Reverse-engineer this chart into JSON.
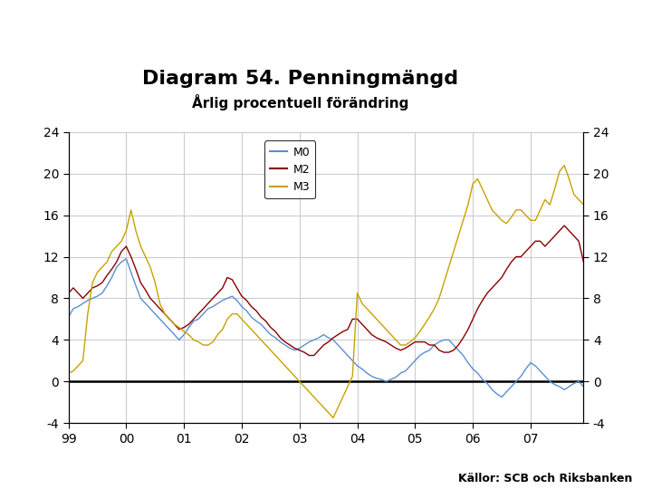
{
  "title": "Diagram 54. Penningmängd",
  "subtitle": "Årlig procentuell förändring",
  "source": "Källor: SCB och Riksbanken",
  "ylim": [
    -4,
    24
  ],
  "yticks": [
    -4,
    0,
    4,
    8,
    12,
    16,
    20,
    24
  ],
  "xlim": [
    0,
    107
  ],
  "xtick_positions": [
    0,
    12,
    24,
    36,
    48,
    60,
    72,
    84,
    96
  ],
  "xtick_labels": [
    "99",
    "00",
    "01",
    "02",
    "03",
    "04",
    "05",
    "06",
    "07"
  ],
  "colors": {
    "M0": "#5b8fce",
    "M2": "#8b0000",
    "M3": "#c8a200"
  },
  "grid_color": "#cccccc",
  "zero_line_color": "#000000",
  "background_color": "#ffffff",
  "footer_color": "#1a3c7a",
  "title_fontsize": 16,
  "subtitle_fontsize": 11,
  "tick_fontsize": 10,
  "logo_color": "#1a3c7a",
  "M0": [
    6.2,
    7.0,
    7.2,
    7.5,
    7.8,
    8.0,
    8.2,
    8.5,
    9.2,
    10.0,
    11.0,
    11.5,
    11.8,
    10.5,
    9.2,
    8.0,
    7.5,
    7.0,
    6.5,
    6.0,
    5.5,
    5.0,
    4.5,
    4.0,
    4.5,
    5.2,
    5.8,
    6.0,
    6.5,
    7.0,
    7.2,
    7.5,
    7.8,
    8.0,
    8.2,
    7.8,
    7.2,
    6.8,
    6.2,
    5.8,
    5.5,
    5.0,
    4.5,
    4.2,
    3.8,
    3.5,
    3.2,
    3.0,
    3.2,
    3.5,
    3.8,
    4.0,
    4.2,
    4.5,
    4.2,
    4.0,
    3.5,
    3.0,
    2.5,
    2.0,
    1.5,
    1.2,
    0.8,
    0.5,
    0.3,
    0.2,
    0.0,
    0.2,
    0.4,
    0.8,
    1.0,
    1.5,
    2.0,
    2.5,
    2.8,
    3.0,
    3.5,
    3.8,
    4.0,
    4.0,
    3.5,
    3.0,
    2.5,
    1.8,
    1.2,
    0.8,
    0.2,
    -0.2,
    -0.8,
    -1.2,
    -1.5,
    -1.0,
    -0.5,
    0.0,
    0.5,
    1.2,
    1.8,
    1.5,
    1.0,
    0.5,
    0.0,
    -0.3,
    -0.5,
    -0.8,
    -0.5,
    -0.2,
    0.0,
    -0.5
  ],
  "M2": [
    8.5,
    9.0,
    8.5,
    8.0,
    8.5,
    9.0,
    9.2,
    9.5,
    10.2,
    10.8,
    11.5,
    12.5,
    13.0,
    12.0,
    10.8,
    9.5,
    8.8,
    8.0,
    7.5,
    7.0,
    6.5,
    6.0,
    5.5,
    5.0,
    5.2,
    5.5,
    6.0,
    6.5,
    7.0,
    7.5,
    8.0,
    8.5,
    9.0,
    10.0,
    9.8,
    9.0,
    8.2,
    7.8,
    7.2,
    6.8,
    6.2,
    5.8,
    5.2,
    4.8,
    4.2,
    3.8,
    3.5,
    3.2,
    3.0,
    2.8,
    2.5,
    2.5,
    3.0,
    3.5,
    3.8,
    4.2,
    4.5,
    4.8,
    5.0,
    6.0,
    6.0,
    5.5,
    5.0,
    4.5,
    4.2,
    4.0,
    3.8,
    3.5,
    3.2,
    3.0,
    3.2,
    3.5,
    3.8,
    3.8,
    3.8,
    3.5,
    3.5,
    3.0,
    2.8,
    2.8,
    3.0,
    3.5,
    4.2,
    5.0,
    6.0,
    7.0,
    7.8,
    8.5,
    9.0,
    9.5,
    10.0,
    10.8,
    11.5,
    12.0,
    12.0,
    12.5,
    13.0,
    13.5,
    13.5,
    13.0,
    13.5,
    14.0,
    14.5,
    15.0,
    14.5,
    14.0,
    13.5,
    11.5
  ],
  "M3": [
    0.8,
    1.0,
    1.5,
    2.0,
    6.5,
    9.5,
    10.5,
    11.0,
    11.5,
    12.5,
    13.0,
    13.5,
    14.5,
    16.5,
    14.5,
    13.0,
    12.0,
    11.0,
    9.5,
    7.5,
    6.5,
    6.0,
    5.5,
    5.2,
    4.8,
    4.5,
    4.0,
    3.8,
    3.5,
    3.5,
    3.8,
    4.5,
    5.0,
    6.0,
    6.5,
    6.5,
    6.0,
    5.5,
    5.0,
    4.5,
    4.0,
    3.5,
    3.0,
    2.5,
    2.0,
    1.5,
    1.0,
    0.5,
    0.0,
    -0.5,
    -1.0,
    -1.5,
    -2.0,
    -2.5,
    -3.0,
    -3.5,
    -2.5,
    -1.5,
    -0.5,
    0.5,
    8.5,
    7.5,
    7.0,
    6.5,
    6.0,
    5.5,
    5.0,
    4.5,
    4.0,
    3.5,
    3.5,
    3.8,
    4.2,
    4.8,
    5.5,
    6.2,
    7.0,
    8.0,
    9.5,
    11.0,
    12.5,
    14.0,
    15.5,
    17.0,
    19.0,
    19.5,
    18.5,
    17.5,
    16.5,
    16.0,
    15.5,
    15.2,
    15.8,
    16.5,
    16.5,
    16.0,
    15.5,
    15.5,
    16.5,
    17.5,
    17.0,
    18.5,
    20.2,
    20.8,
    19.5,
    18.0,
    17.5,
    17.0
  ]
}
